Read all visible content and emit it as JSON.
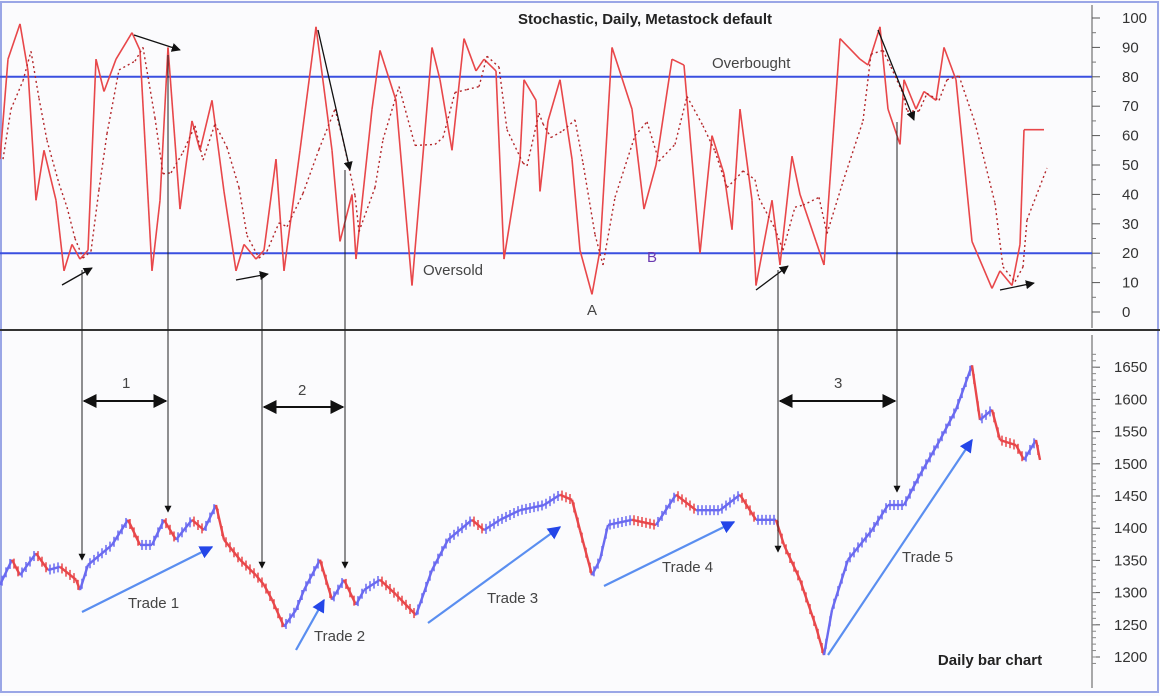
{
  "chart_data": [
    {
      "type": "line",
      "title": "Stochastic, Daily, Metastock default",
      "ylim": [
        0,
        100
      ],
      "yticks": [
        "100",
        "90",
        "80",
        "70",
        "60",
        "50",
        "40",
        "30",
        "20",
        "10",
        "0"
      ],
      "grid": false,
      "reference_lines": [
        {
          "label": "Overbought",
          "value": 80,
          "color": "#3a4fe0"
        },
        {
          "label": "Oversold",
          "value": 20,
          "color": "#3a4fe0"
        }
      ],
      "point_labels": [
        {
          "label": "A",
          "x": 148,
          "value": 6
        },
        {
          "label": "B",
          "x": 163,
          "value": 20
        }
      ],
      "series": [
        {
          "line": "%K solid",
          "color": "#e8474a",
          "x": [
            0,
            2,
            5,
            7,
            9,
            11,
            14,
            16,
            18,
            20,
            22,
            24,
            26,
            29,
            33,
            35,
            38,
            40,
            42,
            45,
            48,
            50,
            53,
            56,
            59,
            61,
            64,
            66,
            69,
            71,
            75,
            79,
            83,
            85,
            88,
            89,
            93,
            95,
            99,
            103,
            108,
            110,
            113,
            116,
            119,
            121,
            124,
            126,
            130,
            131,
            134,
            135,
            137,
            140,
            143,
            145,
            148,
            150,
            153,
            158,
            161,
            164,
            168,
            171,
            175,
            178,
            181,
            183,
            185,
            188,
            189,
            193,
            195,
            198,
            200,
            204,
            206,
            210,
            215,
            217,
            220,
            222,
            225,
            226,
            229,
            231,
            234,
            236,
            239,
            243,
            248,
            250,
            253,
            255,
            256,
            261
          ],
          "values": [
            52,
            86,
            98,
            82,
            38,
            55,
            38,
            14,
            23,
            18,
            21,
            86,
            75,
            86,
            95,
            89,
            14,
            38,
            90,
            35,
            65,
            55,
            72,
            41,
            14,
            23,
            18,
            21,
            52,
            14,
            55,
            97,
            55,
            24,
            40,
            18,
            69,
            89,
            72,
            9,
            90,
            79,
            55,
            93,
            82,
            86,
            82,
            18,
            52,
            79,
            72,
            41,
            65,
            79,
            52,
            21,
            6,
            21,
            90,
            69,
            35,
            50,
            86,
            84,
            20,
            60,
            47,
            28,
            69,
            38,
            9,
            38,
            16,
            53,
            40,
            24,
            16,
            93,
            86,
            84,
            97,
            69,
            57,
            79,
            69,
            75,
            72,
            90,
            79,
            24,
            8,
            14,
            9,
            23,
            62,
            62
          ]
        }
      ]
    },
    {
      "type": "line",
      "title": "Daily bar chart",
      "ylim": [
        1180,
        1680
      ],
      "yticks": [
        "1650",
        "1600",
        "1550",
        "1500",
        "1450",
        "1400",
        "1350",
        "1300",
        "1250",
        "1200"
      ],
      "up_color": "#6a6af0",
      "down_color": "#e8474a",
      "series": [
        {
          "x": [
            0,
            3,
            5,
            9,
            12,
            15,
            19,
            20,
            22,
            28,
            32,
            35,
            38,
            41,
            44,
            48,
            51,
            54,
            56,
            60,
            64,
            66,
            68,
            71,
            74,
            76,
            80,
            83,
            86,
            89,
            91,
            95,
            99,
            104,
            108,
            112,
            118,
            121,
            125,
            130,
            136,
            140,
            143,
            145,
            148,
            150,
            152,
            158,
            164,
            169,
            174,
            180,
            185,
            189,
            194,
            196,
            200,
            204,
            206,
            208,
            212,
            218,
            222,
            226,
            230,
            235,
            239,
            243,
            245,
            248,
            250,
            254,
            256,
            259,
            260
          ],
          "values": [
            1312,
            1351,
            1327,
            1361,
            1335,
            1340,
            1320,
            1304,
            1343,
            1374,
            1413,
            1374,
            1374,
            1413,
            1382,
            1413,
            1397,
            1436,
            1382,
            1351,
            1327,
            1312,
            1289,
            1247,
            1273,
            1304,
            1351,
            1289,
            1320,
            1281,
            1304,
            1320,
            1297,
            1265,
            1335,
            1382,
            1413,
            1397,
            1413,
            1428,
            1436,
            1452,
            1444,
            1397,
            1327,
            1351,
            1405,
            1413,
            1405,
            1452,
            1428,
            1428,
            1452,
            1413,
            1413,
            1374,
            1320,
            1247,
            1203,
            1273,
            1351,
            1397,
            1436,
            1436,
            1483,
            1537,
            1584,
            1653,
            1568,
            1584,
            1537,
            1529,
            1506,
            1537,
            1506
          ]
        }
      ],
      "annotations": {
        "intervals": [
          "1",
          "2",
          "3"
        ],
        "trades": [
          "Trade 1",
          "Trade 2",
          "Trade 3",
          "Trade 4",
          "Trade 5"
        ]
      }
    }
  ]
}
